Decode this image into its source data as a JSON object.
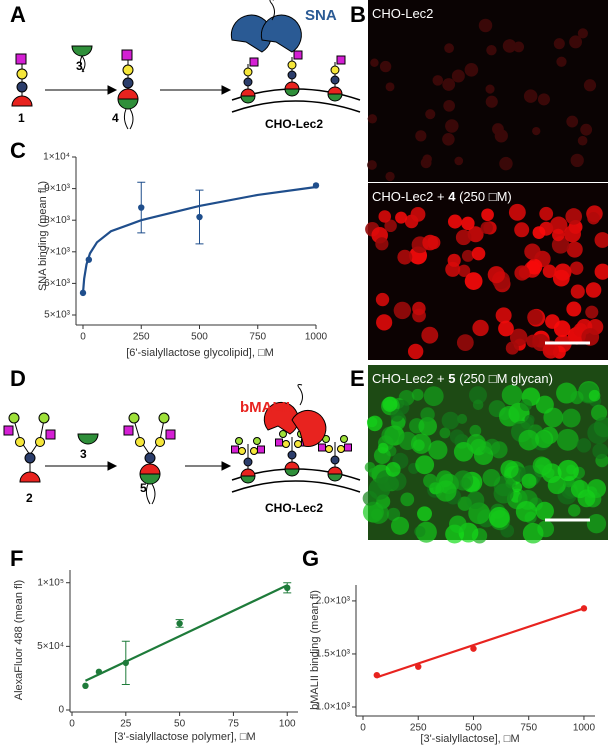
{
  "panel_letters": [
    "A",
    "B",
    "C",
    "D",
    "E",
    "F",
    "G"
  ],
  "scheme_a": {
    "compound_1": "1",
    "reagent": "3",
    "compound_4": "4",
    "lectin": "SNA",
    "cell": "CHO-Lec2"
  },
  "scheme_d": {
    "compound_2": "2",
    "reagent": "3",
    "compound_5": "5",
    "lectin": "bMALII",
    "cell": "CHO-Lec2"
  },
  "image_b": {
    "top_label": "CHO-Lec2",
    "bottom_label": [
      "CHO-Lec2 + ",
      "4",
      " (250 □M)"
    ]
  },
  "image_e": {
    "label": [
      "CHO-Lec2 + ",
      "5",
      " (250 □M glycan)"
    ]
  },
  "chart_data": [
    {
      "type": "scatter",
      "x_label": "[6'-sialyllactose glycolipid], □M",
      "y_label": "SNA binding (mean fl.)",
      "color": "#1f4e8c",
      "x": [
        0,
        25,
        250,
        500,
        1000
      ],
      "values": [
        5700,
        6750,
        8400,
        8100,
        9100
      ],
      "errors": [
        0,
        0,
        800,
        850,
        0
      ],
      "fit_x": [
        0,
        5,
        15,
        30,
        60,
        120,
        250,
        500,
        750,
        1000
      ],
      "fit_values": [
        5700,
        6150,
        6600,
        6950,
        7300,
        7650,
        8000,
        8450,
        8800,
        9050
      ],
      "xlim": [
        0,
        1000
      ],
      "xticks": [
        0,
        250,
        500,
        750,
        1000
      ],
      "ylim": [
        5000,
        10000
      ],
      "yticks": [
        {
          "value": 5000,
          "label": "5×10³"
        },
        {
          "value": 6000,
          "label": "6×10³"
        },
        {
          "value": 7000,
          "label": "7×10³"
        },
        {
          "value": 8000,
          "label": "8×10³"
        },
        {
          "value": 9000,
          "label": "9×10³"
        },
        {
          "value": 10000,
          "label": "1×10⁴"
        }
      ]
    },
    {
      "type": "scatter",
      "x_label": "[3'-sialyllactose polymer], □M",
      "y_label": "AlexaFluor 488 (mean fl)",
      "color": "#1e7b3a",
      "x": [
        6.25,
        12.5,
        25,
        50,
        100
      ],
      "values": [
        19000,
        30000,
        37000,
        68000,
        96000
      ],
      "errors": [
        0,
        0,
        17000,
        3000,
        4000
      ],
      "fit_x": [
        6.25,
        100
      ],
      "fit_values": [
        23000,
        98000
      ],
      "xlim": [
        0,
        105
      ],
      "xticks": [
        0,
        25,
        50,
        75,
        100
      ],
      "ylim": [
        0,
        110000
      ],
      "yticks": [
        0,
        {
          "value": 50000,
          "label": "5×10⁴"
        },
        {
          "value": 100000,
          "label": "1×10⁵"
        }
      ]
    },
    {
      "type": "scatter",
      "x_label": "[3'-sialyllactose], □M",
      "y_label": "bMALII binding (mean fl)",
      "color": "#e8231f",
      "x": [
        62.5,
        250,
        500,
        1000
      ],
      "values": [
        1300,
        1380,
        1550,
        1930
      ],
      "errors": [
        0,
        0,
        0,
        0
      ],
      "fit_x": [
        62.5,
        1000
      ],
      "fit_values": [
        1280,
        1930
      ],
      "xlim": [
        0,
        1050
      ],
      "xticks": [
        0,
        250,
        500,
        750,
        1000
      ],
      "ylim": [
        1000,
        2150
      ],
      "yticks": [
        {
          "value": 1000,
          "label": "1.0×10³"
        },
        {
          "value": 1500,
          "label": "1.5×10³"
        },
        {
          "value": 2000,
          "label": "2.0×10³"
        }
      ]
    }
  ]
}
